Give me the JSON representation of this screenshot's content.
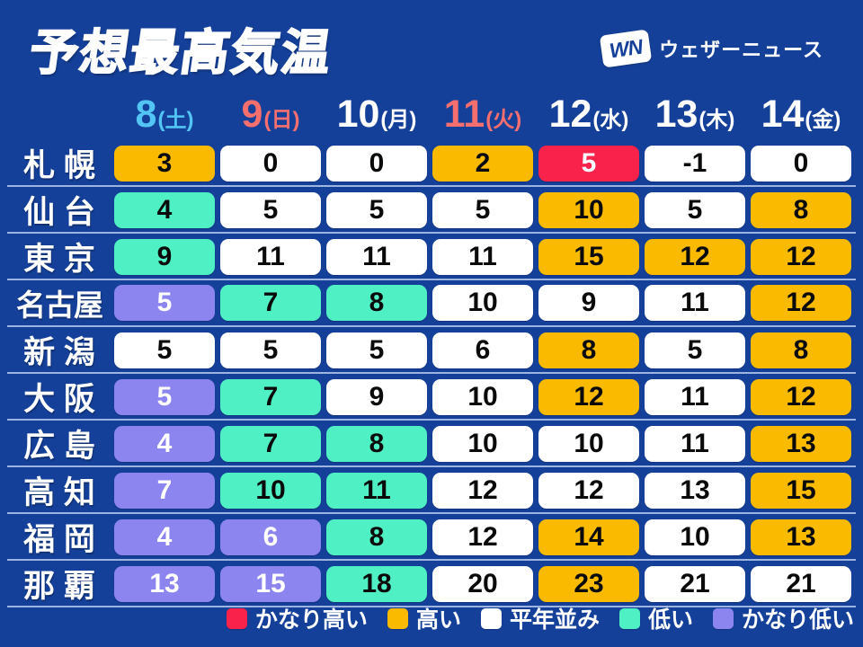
{
  "title": "予想最高気温",
  "logo": {
    "mark": "WN",
    "text": "ウェザーニュース"
  },
  "colors": {
    "background": "#15409A",
    "very_high": "#F8224A",
    "high": "#F9BA00",
    "normal": "#FFFFFF",
    "low": "#50F0C5",
    "very_low": "#8C85F0",
    "saturday": "#52C5F5",
    "holiday": "#F66F6F",
    "weekday_white": "#FFFFFF",
    "separator": "#9DB4E0",
    "cell_text_dark": "#0A0A0A",
    "cell_text_light": "#FFFFFF"
  },
  "header": {
    "days": [
      {
        "num": "8",
        "wd": "(土)",
        "color_key": "saturday"
      },
      {
        "num": "9",
        "wd": "(日)",
        "color_key": "holiday"
      },
      {
        "num": "10",
        "wd": "(月)",
        "color_key": "weekday_white"
      },
      {
        "num": "11",
        "wd": "(火)",
        "color_key": "holiday"
      },
      {
        "num": "12",
        "wd": "(水)",
        "color_key": "weekday_white"
      },
      {
        "num": "13",
        "wd": "(木)",
        "color_key": "weekday_white"
      },
      {
        "num": "14",
        "wd": "(金)",
        "color_key": "weekday_white"
      }
    ]
  },
  "table": {
    "rows": [
      {
        "city": "札 幌",
        "cells": [
          {
            "v": "3",
            "cat": "high"
          },
          {
            "v": "0",
            "cat": "normal"
          },
          {
            "v": "0",
            "cat": "normal"
          },
          {
            "v": "2",
            "cat": "high"
          },
          {
            "v": "5",
            "cat": "very_high"
          },
          {
            "v": "-1",
            "cat": "normal"
          },
          {
            "v": "0",
            "cat": "normal"
          }
        ]
      },
      {
        "city": "仙 台",
        "cells": [
          {
            "v": "4",
            "cat": "low"
          },
          {
            "v": "5",
            "cat": "normal"
          },
          {
            "v": "5",
            "cat": "normal"
          },
          {
            "v": "5",
            "cat": "normal"
          },
          {
            "v": "10",
            "cat": "high"
          },
          {
            "v": "5",
            "cat": "normal"
          },
          {
            "v": "8",
            "cat": "high"
          }
        ]
      },
      {
        "city": "東 京",
        "cells": [
          {
            "v": "9",
            "cat": "low"
          },
          {
            "v": "11",
            "cat": "normal"
          },
          {
            "v": "11",
            "cat": "normal"
          },
          {
            "v": "11",
            "cat": "normal"
          },
          {
            "v": "15",
            "cat": "high"
          },
          {
            "v": "12",
            "cat": "high"
          },
          {
            "v": "12",
            "cat": "high"
          }
        ]
      },
      {
        "city": "名古屋",
        "cells": [
          {
            "v": "5",
            "cat": "very_low"
          },
          {
            "v": "7",
            "cat": "low"
          },
          {
            "v": "8",
            "cat": "low"
          },
          {
            "v": "10",
            "cat": "normal"
          },
          {
            "v": "9",
            "cat": "normal"
          },
          {
            "v": "11",
            "cat": "normal"
          },
          {
            "v": "12",
            "cat": "high"
          }
        ]
      },
      {
        "city": "新 潟",
        "cells": [
          {
            "v": "5",
            "cat": "normal"
          },
          {
            "v": "5",
            "cat": "normal"
          },
          {
            "v": "5",
            "cat": "normal"
          },
          {
            "v": "6",
            "cat": "normal"
          },
          {
            "v": "8",
            "cat": "high"
          },
          {
            "v": "5",
            "cat": "normal"
          },
          {
            "v": "8",
            "cat": "high"
          }
        ]
      },
      {
        "city": "大 阪",
        "cells": [
          {
            "v": "5",
            "cat": "very_low"
          },
          {
            "v": "7",
            "cat": "low"
          },
          {
            "v": "9",
            "cat": "normal"
          },
          {
            "v": "10",
            "cat": "normal"
          },
          {
            "v": "12",
            "cat": "high"
          },
          {
            "v": "11",
            "cat": "normal"
          },
          {
            "v": "12",
            "cat": "high"
          }
        ]
      },
      {
        "city": "広 島",
        "cells": [
          {
            "v": "4",
            "cat": "very_low"
          },
          {
            "v": "7",
            "cat": "low"
          },
          {
            "v": "8",
            "cat": "low"
          },
          {
            "v": "10",
            "cat": "normal"
          },
          {
            "v": "10",
            "cat": "normal"
          },
          {
            "v": "11",
            "cat": "normal"
          },
          {
            "v": "13",
            "cat": "high"
          }
        ]
      },
      {
        "city": "高 知",
        "cells": [
          {
            "v": "7",
            "cat": "very_low"
          },
          {
            "v": "10",
            "cat": "low"
          },
          {
            "v": "11",
            "cat": "low"
          },
          {
            "v": "12",
            "cat": "normal"
          },
          {
            "v": "12",
            "cat": "normal"
          },
          {
            "v": "13",
            "cat": "normal"
          },
          {
            "v": "15",
            "cat": "high"
          }
        ]
      },
      {
        "city": "福 岡",
        "cells": [
          {
            "v": "4",
            "cat": "very_low"
          },
          {
            "v": "6",
            "cat": "very_low"
          },
          {
            "v": "8",
            "cat": "low"
          },
          {
            "v": "12",
            "cat": "normal"
          },
          {
            "v": "14",
            "cat": "high"
          },
          {
            "v": "10",
            "cat": "normal"
          },
          {
            "v": "13",
            "cat": "high"
          }
        ]
      },
      {
        "city": "那 覇",
        "cells": [
          {
            "v": "13",
            "cat": "very_low"
          },
          {
            "v": "15",
            "cat": "very_low"
          },
          {
            "v": "18",
            "cat": "low"
          },
          {
            "v": "20",
            "cat": "normal"
          },
          {
            "v": "23",
            "cat": "high"
          },
          {
            "v": "21",
            "cat": "normal"
          },
          {
            "v": "21",
            "cat": "normal"
          }
        ]
      }
    ]
  },
  "legend": [
    {
      "label": "かなり高い",
      "cat": "very_high"
    },
    {
      "label": "高い",
      "cat": "high"
    },
    {
      "label": "平年並み",
      "cat": "normal"
    },
    {
      "label": "低い",
      "cat": "low"
    },
    {
      "label": "かなり低い",
      "cat": "very_low"
    }
  ],
  "chart_data": {
    "type": "table",
    "title": "予想最高気温",
    "columns": [
      "8(土)",
      "9(日)",
      "10(月)",
      "11(火)",
      "12(水)",
      "13(木)",
      "14(金)"
    ],
    "row_labels": [
      "札幌",
      "仙台",
      "東京",
      "名古屋",
      "新潟",
      "大阪",
      "広島",
      "高知",
      "福岡",
      "那覇"
    ],
    "values": [
      [
        3,
        0,
        0,
        2,
        5,
        -1,
        0
      ],
      [
        4,
        5,
        5,
        5,
        10,
        5,
        8
      ],
      [
        9,
        11,
        11,
        11,
        15,
        12,
        12
      ],
      [
        5,
        7,
        8,
        10,
        9,
        11,
        12
      ],
      [
        5,
        5,
        5,
        6,
        8,
        5,
        8
      ],
      [
        5,
        7,
        9,
        10,
        12,
        11,
        12
      ],
      [
        4,
        7,
        8,
        10,
        10,
        11,
        13
      ],
      [
        7,
        10,
        11,
        12,
        12,
        13,
        15
      ],
      [
        4,
        6,
        8,
        12,
        14,
        10,
        13
      ],
      [
        13,
        15,
        18,
        20,
        23,
        21,
        21
      ]
    ],
    "cell_categories": [
      [
        "high",
        "normal",
        "normal",
        "high",
        "very_high",
        "normal",
        "normal"
      ],
      [
        "low",
        "normal",
        "normal",
        "normal",
        "high",
        "normal",
        "high"
      ],
      [
        "low",
        "normal",
        "normal",
        "normal",
        "high",
        "high",
        "high"
      ],
      [
        "very_low",
        "low",
        "low",
        "normal",
        "normal",
        "normal",
        "high"
      ],
      [
        "normal",
        "normal",
        "normal",
        "normal",
        "high",
        "normal",
        "high"
      ],
      [
        "very_low",
        "low",
        "normal",
        "normal",
        "high",
        "normal",
        "high"
      ],
      [
        "very_low",
        "low",
        "low",
        "normal",
        "normal",
        "normal",
        "high"
      ],
      [
        "very_low",
        "low",
        "low",
        "normal",
        "normal",
        "normal",
        "high"
      ],
      [
        "very_low",
        "very_low",
        "low",
        "normal",
        "high",
        "normal",
        "high"
      ],
      [
        "very_low",
        "very_low",
        "low",
        "normal",
        "high",
        "normal",
        "normal"
      ]
    ],
    "category_labels": {
      "very_high": "かなり高い",
      "high": "高い",
      "normal": "平年並み",
      "low": "低い",
      "very_low": "かなり低い"
    },
    "legend_position": "bottom-right"
  }
}
